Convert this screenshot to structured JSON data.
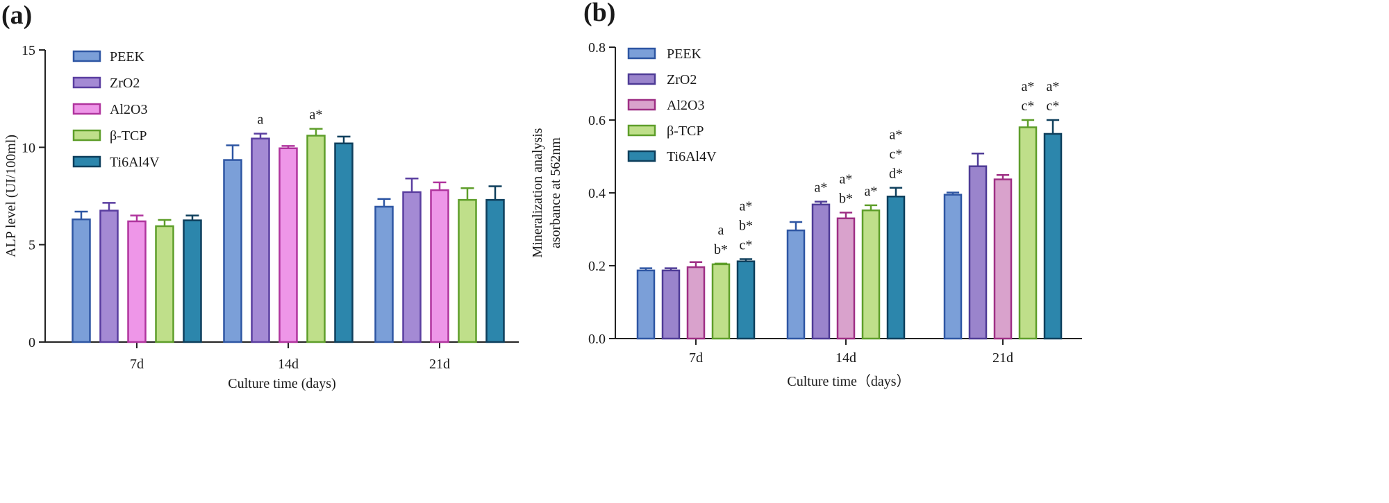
{
  "chart_data": [
    {
      "type": "bar",
      "panel_label": "(a)",
      "categories": [
        "7d",
        "14d",
        "21d"
      ],
      "xlabel": "Culture time (days)",
      "ylabel": "ALP level (UI/100ml)",
      "ylim": [
        0,
        15
      ],
      "yticks": [
        "0",
        "5",
        "10",
        "15"
      ],
      "legend_position": "top-left",
      "series": [
        {
          "name": "PEEK",
          "values": [
            6.3,
            9.35,
            6.95
          ],
          "errors": [
            0.4,
            0.75,
            0.4
          ],
          "fill": "#7b9fd8",
          "stroke": "#2e56a3"
        },
        {
          "name": "ZrO2",
          "values": [
            6.75,
            10.45,
            7.7
          ],
          "errors": [
            0.4,
            0.25,
            0.7
          ],
          "fill": "#a48ad4",
          "stroke": "#5a3ea0"
        },
        {
          "name": "Al2O3",
          "values": [
            6.2,
            9.95,
            7.8
          ],
          "errors": [
            0.3,
            0.12,
            0.4
          ],
          "fill": "#ee96e8",
          "stroke": "#b0349e"
        },
        {
          "name": "β-TCP",
          "values": [
            5.95,
            10.6,
            7.3
          ],
          "errors": [
            0.32,
            0.35,
            0.6
          ],
          "fill": "#bfdf8a",
          "stroke": "#5e9e2a"
        },
        {
          "name": "Ti6Al4V",
          "values": [
            6.25,
            10.2,
            7.3
          ],
          "errors": [
            0.25,
            0.35,
            0.7
          ],
          "fill": "#2c86ac",
          "stroke": "#0e3f5c"
        }
      ],
      "annotations": [
        {
          "category": 1,
          "series": 1,
          "lines": [
            "a"
          ]
        },
        {
          "category": 1,
          "series": 3,
          "lines": [
            "a*"
          ]
        }
      ]
    },
    {
      "type": "bar",
      "panel_label": "(b)",
      "categories": [
        "7d",
        "14d",
        "21d"
      ],
      "xlabel": "Culture time（days）",
      "ylabel_lines": [
        "Mineralization analysis",
        "asorbance at 562nm"
      ],
      "ylim": [
        0,
        0.8
      ],
      "yticks": [
        "0.0",
        "0.2",
        "0.4",
        "0.6",
        "0.8"
      ],
      "legend_position": "top-left",
      "series": [
        {
          "name": "PEEK",
          "values": [
            0.187,
            0.297,
            0.395
          ],
          "errors": [
            0.006,
            0.023,
            0.006
          ],
          "fill": "#7b9fd8",
          "stroke": "#2e56a3"
        },
        {
          "name": "ZrO2",
          "values": [
            0.187,
            0.368,
            0.473
          ],
          "errors": [
            0.006,
            0.008,
            0.035
          ],
          "fill": "#9a84cc",
          "stroke": "#4e3b96"
        },
        {
          "name": "Al2O3",
          "values": [
            0.196,
            0.33,
            0.437
          ],
          "errors": [
            0.014,
            0.016,
            0.012
          ],
          "fill": "#d9a2cc",
          "stroke": "#9e2f84"
        },
        {
          "name": "β-TCP",
          "values": [
            0.204,
            0.352,
            0.58
          ],
          "errors": [
            0.002,
            0.014,
            0.02
          ],
          "fill": "#bfdf8a",
          "stroke": "#5e9e2a"
        },
        {
          "name": "Ti6Al4V",
          "values": [
            0.212,
            0.39,
            0.562
          ],
          "errors": [
            0.006,
            0.024,
            0.038
          ],
          "fill": "#2c86ac",
          "stroke": "#0e3f5c"
        }
      ],
      "annotations": [
        {
          "category": 0,
          "series": 3,
          "lines": [
            "a",
            "b*"
          ]
        },
        {
          "category": 0,
          "series": 4,
          "lines": [
            "a*",
            "b*",
            "c*"
          ]
        },
        {
          "category": 1,
          "series": 1,
          "lines": [
            "a*"
          ]
        },
        {
          "category": 1,
          "series": 2,
          "lines": [
            "a*",
            "b*"
          ]
        },
        {
          "category": 1,
          "series": 3,
          "lines": [
            "a*"
          ]
        },
        {
          "category": 1,
          "series": 4,
          "lines": [
            "a*",
            "c*",
            "d*"
          ]
        },
        {
          "category": 2,
          "series": 3,
          "lines": [
            "a*",
            "c*"
          ]
        },
        {
          "category": 2,
          "series": 4,
          "lines": [
            "a*",
            "c*"
          ]
        }
      ]
    }
  ]
}
